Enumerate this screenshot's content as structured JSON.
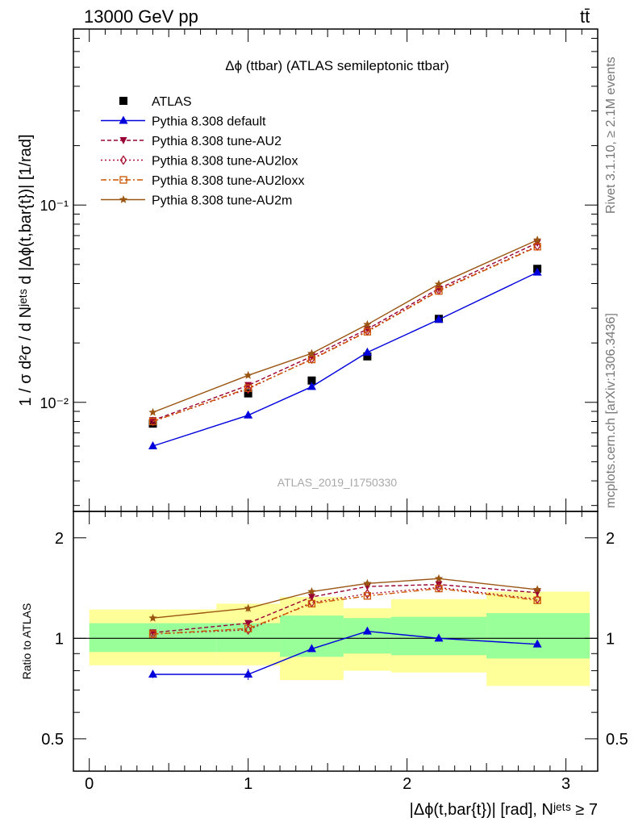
{
  "header": {
    "left": "13000 GeV pp",
    "right": "tt̄"
  },
  "side_labels": {
    "rivet": "Rivet 3.1.10, ≥ 2.1M events",
    "mcplots": "mcplots.cern.ch [arXiv:1306.3436]"
  },
  "chart_data": [
    {
      "type": "line",
      "title": "Δϕ (ttbar) (ATLAS semileptonic ttbar)",
      "watermark": "ATLAS_2019_I1750330",
      "ylabel": "1 / σ d²σ / d Nʲᵉᵗˢ d |Δϕ(t,bar{t})| [1/rad]",
      "yscale": "log",
      "ylim": [
        0.0028,
        0.78
      ],
      "xlim": [
        -0.1,
        3.2
      ],
      "yticks": [
        {
          "v": 0.01,
          "label": "10⁻²"
        },
        {
          "v": 0.1,
          "label": "10⁻¹"
        }
      ],
      "legend_position": "top-left",
      "x": [
        0.4,
        1.0,
        1.4,
        1.75,
        2.2,
        2.82
      ],
      "series": [
        {
          "name": "ATLAS",
          "marker": "square",
          "color": "#000000",
          "dash": "none",
          "values": [
            0.0078,
            0.0111,
            0.0129,
            0.0171,
            0.0265,
            0.0475
          ],
          "errors": [
            0.0002,
            0.0003,
            0.0003,
            0.0004,
            0.0005,
            0.0008
          ]
        },
        {
          "name": "Pythia 8.308 default",
          "marker": "triangle-up",
          "color": "#0000dd",
          "dash": "none",
          "values": [
            0.006,
            0.0086,
            0.012,
            0.0179,
            0.0263,
            0.0456
          ]
        },
        {
          "name": "Pythia 8.308 tune-AU2",
          "marker": "triangle-down",
          "color": "#990033",
          "dash": "5,3",
          "values": [
            0.0081,
            0.0122,
            0.0171,
            0.0235,
            0.0377,
            0.0643
          ]
        },
        {
          "name": "Pythia 8.308 tune-AU2lox",
          "marker": "diamond-open",
          "color": "#aa1133",
          "dash": "2,3",
          "values": [
            0.008,
            0.0117,
            0.0166,
            0.023,
            0.037,
            0.062
          ]
        },
        {
          "name": "Pythia 8.308 tune-AU2loxx",
          "marker": "square-open",
          "color": "#cc5500",
          "dash": "7,3,2,3",
          "values": [
            0.008,
            0.0118,
            0.0165,
            0.0228,
            0.0367,
            0.0615
          ]
        },
        {
          "name": "Pythia 8.308 tune-AU2m",
          "marker": "star",
          "color": "#995511",
          "dash": "none",
          "values": [
            0.0089,
            0.0137,
            0.0177,
            0.0248,
            0.0397,
            0.0665
          ]
        }
      ]
    },
    {
      "type": "line",
      "ylabel": "Ratio to ATLAS",
      "xlabel": "|Δϕ(t,bar{t})| [rad], Nʲᵉᵗˢ ≥ 7",
      "yscale": "log",
      "ylim": [
        0.4,
        2.4
      ],
      "xlim": [
        -0.1,
        3.2
      ],
      "yticks": [
        {
          "v": 0.5,
          "label": "0.5"
        },
        {
          "v": 1,
          "label": "1"
        },
        {
          "v": 2,
          "label": "2"
        }
      ],
      "xticks": [
        0,
        1,
        2,
        3
      ],
      "bands": [
        {
          "x0": 0.0,
          "x1": 0.8,
          "inner": [
            0.91,
            1.11
          ],
          "outer": [
            0.83,
            1.22
          ]
        },
        {
          "x0": 0.8,
          "x1": 1.2,
          "inner": [
            0.91,
            1.11
          ],
          "outer": [
            0.83,
            1.27
          ]
        },
        {
          "x0": 1.2,
          "x1": 1.6,
          "inner": [
            0.88,
            1.17
          ],
          "outer": [
            0.75,
            1.33
          ]
        },
        {
          "x0": 1.6,
          "x1": 1.9,
          "inner": [
            0.9,
            1.15
          ],
          "outer": [
            0.8,
            1.23
          ]
        },
        {
          "x0": 1.9,
          "x1": 2.5,
          "inner": [
            0.89,
            1.16
          ],
          "outer": [
            0.79,
            1.31
          ]
        },
        {
          "x0": 2.5,
          "x1": 3.15,
          "inner": [
            0.87,
            1.19
          ],
          "outer": [
            0.72,
            1.38
          ]
        }
      ],
      "x": [
        0.4,
        1.0,
        1.4,
        1.75,
        2.2,
        2.82
      ],
      "series": [
        {
          "name": "Pythia 8.308 default",
          "marker": "triangle-up",
          "color": "#0000dd",
          "dash": "none",
          "values": [
            0.78,
            0.78,
            0.93,
            1.05,
            1.0,
            0.96
          ],
          "errors": [
            0.02,
            0.03,
            0.02,
            0.02,
            0.01,
            0.01
          ]
        },
        {
          "name": "Pythia 8.308 tune-AU2",
          "marker": "triangle-down",
          "color": "#990033",
          "dash": "5,3",
          "values": [
            1.04,
            1.11,
            1.33,
            1.43,
            1.45,
            1.37
          ]
        },
        {
          "name": "Pythia 8.308 tune-AU2lox",
          "marker": "diamond-open",
          "color": "#aa1133",
          "dash": "2,3",
          "values": [
            1.03,
            1.06,
            1.28,
            1.36,
            1.42,
            1.31
          ]
        },
        {
          "name": "Pythia 8.308 tune-AU2loxx",
          "marker": "square-open",
          "color": "#cc5500",
          "dash": "7,3,2,3",
          "values": [
            1.03,
            1.07,
            1.27,
            1.34,
            1.41,
            1.3
          ]
        },
        {
          "name": "Pythia 8.308 tune-AU2m",
          "marker": "star",
          "color": "#995511",
          "dash": "none",
          "values": [
            1.15,
            1.23,
            1.38,
            1.46,
            1.51,
            1.4
          ],
          "errors": [
            0.02,
            0.03,
            0.02,
            0.02,
            0.01,
            0.01
          ]
        }
      ]
    }
  ]
}
